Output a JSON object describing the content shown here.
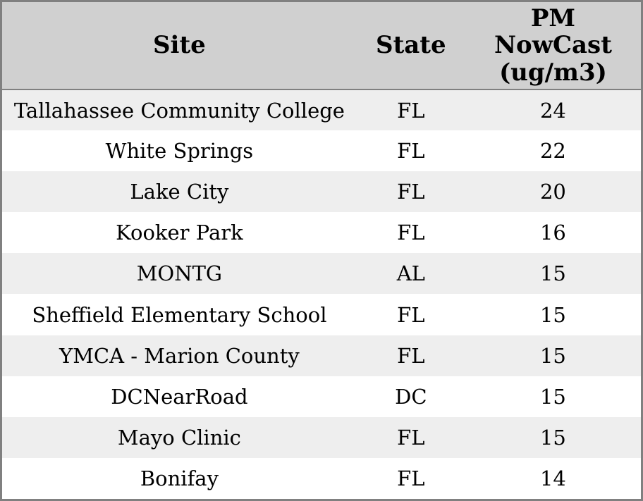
{
  "chart_data": {
    "type": "table",
    "title": "",
    "columns": [
      "Site",
      "State",
      "PM NowCast (ug/m3)"
    ],
    "rows": [
      [
        "Tallahassee Community College",
        "FL",
        24
      ],
      [
        "White Springs",
        "FL",
        22
      ],
      [
        "Lake City",
        "FL",
        20
      ],
      [
        "Kooker Park",
        "FL",
        16
      ],
      [
        "MONTG",
        "AL",
        15
      ],
      [
        "Sheffield Elementary School",
        "FL",
        15
      ],
      [
        "YMCA - Marion County",
        "FL",
        15
      ],
      [
        "DCNearRoad",
        "DC",
        15
      ],
      [
        "Mayo Clinic",
        "FL",
        15
      ],
      [
        "Bonifay",
        "FL",
        14
      ]
    ],
    "layout_hints": {
      "striped": true,
      "header_position": "top",
      "alignment": "center"
    }
  },
  "colors": {
    "header_bg": "#d0d0d0",
    "row_alt_bg": "#eeeeee",
    "row_bg": "#ffffff",
    "border": "#808080",
    "text": "#000000"
  }
}
